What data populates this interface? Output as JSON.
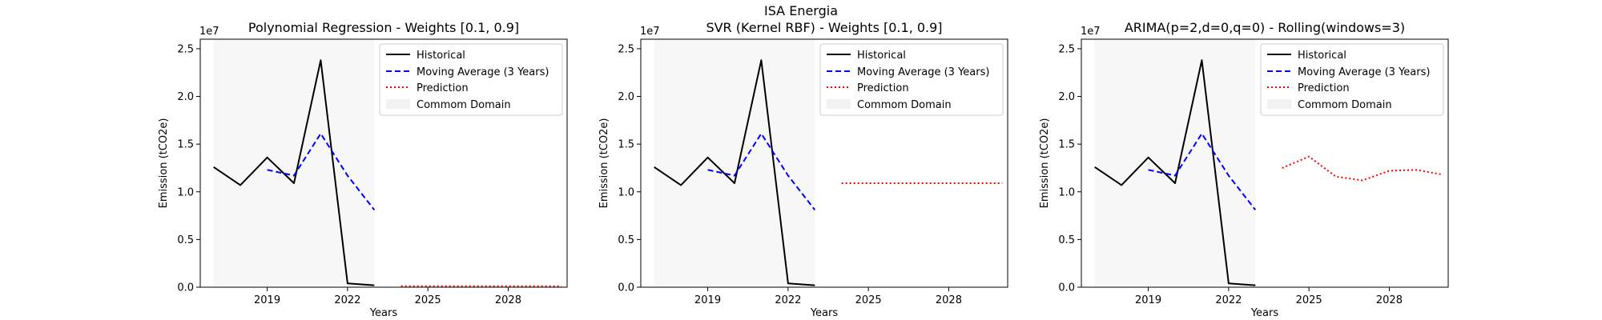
{
  "suptitle": "ISA Energia",
  "chart_data": [
    {
      "type": "line",
      "title": "Polynomial Regression - Weights [0.1, 0.9]",
      "xlabel": "Years",
      "ylabel": "Emission (tCO2e)",
      "y_offset_label": "1e7",
      "xlim": [
        2016.5,
        2030.2
      ],
      "ylim": [
        0,
        2.6
      ],
      "xticks": [
        2019,
        2022,
        2025,
        2028
      ],
      "yticks": [
        0.0,
        0.5,
        1.0,
        1.5,
        2.0,
        2.5
      ],
      "ytick_labels": [
        "0.0",
        "0.5",
        "1.0",
        "1.5",
        "2.0",
        "2.5"
      ],
      "common_domain": [
        2017,
        2023
      ],
      "legend_position": "top-right",
      "legend": [
        "Historical",
        "Moving Average (3 Years)",
        "Prediction",
        "Commom Domain"
      ],
      "series": [
        {
          "name": "Historical",
          "color": "#000000",
          "style": "solid",
          "x": [
            2017,
            2018,
            2019,
            2020,
            2021,
            2022,
            2023
          ],
          "y": [
            1.26,
            1.07,
            1.36,
            1.09,
            2.38,
            0.04,
            0.02
          ]
        },
        {
          "name": "Moving Average (3 Years)",
          "color": "#0000ff",
          "style": "dashed",
          "x": [
            2019,
            2020,
            2021,
            2022,
            2023
          ],
          "y": [
            1.23,
            1.17,
            1.61,
            1.17,
            0.81
          ]
        },
        {
          "name": "Prediction",
          "color": "#ff0000",
          "style": "dotted",
          "x": [
            2024,
            2025,
            2026,
            2027,
            2028,
            2029,
            2030
          ],
          "y": [
            0.01,
            0.01,
            0.01,
            0.01,
            0.01,
            0.01,
            0.01
          ]
        }
      ]
    },
    {
      "type": "line",
      "title": "SVR (Kernel RBF) - Weights [0.1, 0.9]",
      "xlabel": "Years",
      "ylabel": "Emission (tCO2e)",
      "y_offset_label": "1e7",
      "xlim": [
        2016.5,
        2030.2
      ],
      "ylim": [
        0,
        2.6
      ],
      "xticks": [
        2019,
        2022,
        2025,
        2028
      ],
      "yticks": [
        0.0,
        0.5,
        1.0,
        1.5,
        2.0,
        2.5
      ],
      "ytick_labels": [
        "0.0",
        "0.5",
        "1.0",
        "1.5",
        "2.0",
        "2.5"
      ],
      "common_domain": [
        2017,
        2023
      ],
      "legend_position": "top-right",
      "legend": [
        "Historical",
        "Moving Average (3 Years)",
        "Prediction",
        "Commom Domain"
      ],
      "series": [
        {
          "name": "Historical",
          "color": "#000000",
          "style": "solid",
          "x": [
            2017,
            2018,
            2019,
            2020,
            2021,
            2022,
            2023
          ],
          "y": [
            1.26,
            1.07,
            1.36,
            1.09,
            2.38,
            0.04,
            0.02
          ]
        },
        {
          "name": "Moving Average (3 Years)",
          "color": "#0000ff",
          "style": "dashed",
          "x": [
            2019,
            2020,
            2021,
            2022,
            2023
          ],
          "y": [
            1.23,
            1.17,
            1.61,
            1.17,
            0.81
          ]
        },
        {
          "name": "Prediction",
          "color": "#ff0000",
          "style": "dotted",
          "x": [
            2024,
            2025,
            2026,
            2027,
            2028,
            2029,
            2030
          ],
          "y": [
            1.09,
            1.09,
            1.09,
            1.09,
            1.09,
            1.09,
            1.09
          ]
        }
      ]
    },
    {
      "type": "line",
      "title": "ARIMA(p=2,d=0,q=0) - Rolling(windows=3)",
      "xlabel": "Years",
      "ylabel": "Emission (tCO2e)",
      "y_offset_label": "1e7",
      "xlim": [
        2016.5,
        2030.2
      ],
      "ylim": [
        0,
        2.6
      ],
      "xticks": [
        2019,
        2022,
        2025,
        2028
      ],
      "yticks": [
        0.0,
        0.5,
        1.0,
        1.5,
        2.0,
        2.5
      ],
      "ytick_labels": [
        "0.0",
        "0.5",
        "1.0",
        "1.5",
        "2.0",
        "2.5"
      ],
      "common_domain": [
        2017,
        2023
      ],
      "legend_position": "top-right",
      "legend": [
        "Historical",
        "Moving Average (3 Years)",
        "Prediction",
        "Commom Domain"
      ],
      "series": [
        {
          "name": "Historical",
          "color": "#000000",
          "style": "solid",
          "x": [
            2017,
            2018,
            2019,
            2020,
            2021,
            2022,
            2023
          ],
          "y": [
            1.26,
            1.07,
            1.36,
            1.09,
            2.38,
            0.04,
            0.02
          ]
        },
        {
          "name": "Moving Average (3 Years)",
          "color": "#0000ff",
          "style": "dashed",
          "x": [
            2019,
            2020,
            2021,
            2022,
            2023
          ],
          "y": [
            1.23,
            1.17,
            1.61,
            1.17,
            0.81
          ]
        },
        {
          "name": "Prediction",
          "color": "#ff0000",
          "style": "dotted",
          "x": [
            2024,
            2025,
            2026,
            2027,
            2028,
            2029,
            2030
          ],
          "y": [
            1.25,
            1.37,
            1.16,
            1.12,
            1.22,
            1.23,
            1.18
          ]
        }
      ]
    }
  ]
}
